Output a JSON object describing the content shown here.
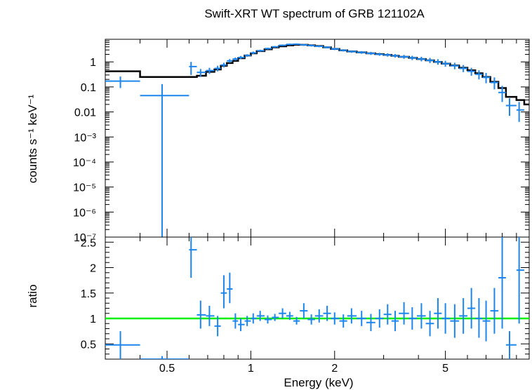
{
  "chart_data": [
    {
      "type": "scatter",
      "panel": "spectrum",
      "title": "Swift-XRT WT spectrum of GRB 121102A",
      "ylabel": "counts s⁻¹ keV⁻¹",
      "xlabel": "",
      "x_scale": "log",
      "y_scale": "log",
      "xlim": [
        0.3,
        10
      ],
      "ylim": [
        1e-07,
        8
      ],
      "y_tick_labels": [
        "1",
        "0.1",
        "0.01",
        "10⁻³",
        "10⁻⁴",
        "10⁻⁵",
        "10⁻⁶",
        "10⁻⁷"
      ],
      "y_tick_values": [
        1,
        0.1,
        0.01,
        0.001,
        0.0001,
        1e-05,
        1e-06,
        1e-07
      ],
      "colors": {
        "data": "#1c86ee",
        "model": "#000000"
      },
      "series": [
        {
          "kind": "data",
          "x": [
            0.34,
            0.48,
            0.61,
            0.66,
            0.71,
            0.76,
            0.8,
            0.84,
            0.88,
            0.92,
            0.97,
            1.02,
            1.08,
            1.15,
            1.22,
            1.3,
            1.38,
            1.46,
            1.55,
            1.65,
            1.76,
            1.88,
            2.0,
            2.15,
            2.3,
            2.5,
            2.7,
            2.9,
            3.1,
            3.3,
            3.55,
            3.8,
            4.1,
            4.4,
            4.7,
            5.0,
            5.4,
            5.8,
            6.2,
            6.6,
            7.0,
            7.5,
            8.0,
            8.5,
            9.2
          ],
          "xlo": [
            0.3,
            0.4,
            0.6,
            0.64,
            0.69,
            0.74,
            0.78,
            0.82,
            0.86,
            0.9,
            0.95,
            1.0,
            1.05,
            1.12,
            1.19,
            1.26,
            1.34,
            1.42,
            1.5,
            1.6,
            1.7,
            1.82,
            1.94,
            2.08,
            2.22,
            2.4,
            2.6,
            2.8,
            3.0,
            3.2,
            3.4,
            3.7,
            3.95,
            4.25,
            4.55,
            4.85,
            5.2,
            5.6,
            6.0,
            6.4,
            6.8,
            7.25,
            7.75,
            8.25,
            9.0
          ],
          "xhi": [
            0.4,
            0.6,
            0.64,
            0.69,
            0.74,
            0.78,
            0.82,
            0.86,
            0.9,
            0.95,
            1.0,
            1.05,
            1.12,
            1.19,
            1.26,
            1.34,
            1.42,
            1.5,
            1.6,
            1.7,
            1.82,
            1.94,
            2.08,
            2.22,
            2.4,
            2.6,
            2.8,
            3.0,
            3.2,
            3.4,
            3.7,
            3.95,
            4.25,
            4.55,
            4.85,
            5.2,
            5.6,
            6.0,
            6.4,
            6.8,
            7.25,
            7.75,
            8.25,
            9.0,
            9.6
          ],
          "y": [
            0.17,
            0.045,
            0.65,
            0.38,
            0.45,
            0.55,
            0.75,
            1.1,
            1.3,
            1.5,
            1.8,
            2.3,
            2.8,
            3.4,
            4.0,
            4.6,
            5.0,
            5.1,
            4.8,
            4.5,
            4.2,
            3.8,
            3.3,
            2.9,
            2.6,
            2.4,
            2.2,
            2.0,
            1.9,
            1.75,
            1.6,
            1.45,
            1.3,
            1.15,
            1.0,
            0.85,
            0.7,
            0.55,
            0.42,
            0.32,
            0.24,
            0.15,
            0.06,
            0.018,
            0.012
          ],
          "ylo": [
            0.09,
            1e-07,
            0.3,
            0.25,
            0.33,
            0.42,
            0.6,
            0.92,
            1.12,
            1.3,
            1.6,
            2.05,
            2.55,
            3.1,
            3.7,
            4.25,
            4.6,
            4.7,
            4.4,
            4.1,
            3.85,
            3.45,
            2.95,
            2.6,
            2.3,
            2.1,
            1.9,
            1.75,
            1.62,
            1.48,
            1.33,
            1.18,
            1.05,
            0.9,
            0.77,
            0.64,
            0.51,
            0.39,
            0.28,
            0.2,
            0.14,
            0.08,
            0.025,
            0.007,
            0.004
          ],
          "yhi": [
            0.26,
            0.13,
            1.0,
            0.52,
            0.58,
            0.7,
            0.92,
            1.3,
            1.5,
            1.72,
            2.02,
            2.58,
            3.07,
            3.7,
            4.3,
            4.95,
            5.4,
            5.5,
            5.2,
            4.9,
            4.55,
            4.15,
            3.65,
            3.2,
            2.9,
            2.7,
            2.5,
            2.3,
            2.2,
            2.05,
            1.9,
            1.75,
            1.6,
            1.45,
            1.28,
            1.1,
            0.92,
            0.75,
            0.58,
            0.46,
            0.36,
            0.24,
            0.11,
            0.035,
            0.025
          ]
        },
        {
          "kind": "model",
          "x": [
            0.3,
            0.4,
            0.6,
            0.64,
            0.69,
            0.74,
            0.78,
            0.82,
            0.86,
            0.9,
            0.95,
            1.0,
            1.05,
            1.12,
            1.19,
            1.26,
            1.34,
            1.42,
            1.5,
            1.6,
            1.7,
            1.82,
            1.94,
            2.08,
            2.22,
            2.4,
            2.6,
            2.8,
            3.0,
            3.2,
            3.4,
            3.7,
            3.95,
            4.25,
            4.55,
            4.85,
            5.2,
            5.6,
            6.0,
            6.4,
            6.8,
            7.25,
            7.75,
            8.25,
            9.0,
            9.6,
            10
          ],
          "y": [
            0.42,
            0.25,
            0.25,
            0.28,
            0.4,
            0.5,
            0.7,
            0.9,
            1.1,
            1.4,
            1.8,
            2.2,
            2.7,
            3.2,
            3.8,
            4.2,
            4.6,
            4.8,
            4.8,
            4.6,
            4.3,
            3.8,
            3.3,
            2.9,
            2.6,
            2.4,
            2.2,
            2.05,
            1.9,
            1.75,
            1.6,
            1.45,
            1.3,
            1.15,
            1.0,
            0.85,
            0.72,
            0.58,
            0.46,
            0.35,
            0.25,
            0.16,
            0.09,
            0.04,
            0.03,
            0.02,
            0.015
          ]
        }
      ]
    },
    {
      "type": "scatter",
      "panel": "ratio",
      "title": "",
      "ylabel": "ratio",
      "xlabel": "Energy (keV)",
      "x_scale": "log",
      "y_scale": "linear",
      "xlim": [
        0.3,
        10
      ],
      "ylim": [
        0.2,
        2.6
      ],
      "x_tick_labels": [
        "0.5",
        "1",
        "2",
        "5"
      ],
      "x_tick_values": [
        0.5,
        1,
        2,
        5
      ],
      "y_tick_labels": [
        "0.5",
        "1",
        "1.5",
        "2",
        "2.5"
      ],
      "y_tick_values": [
        0.5,
        1,
        1.5,
        2,
        2.5
      ],
      "reference_line": 1,
      "colors": {
        "data": "#1c86ee",
        "reference": "#00ee00"
      },
      "series": [
        {
          "kind": "data",
          "x": [
            0.34,
            0.48,
            0.61,
            0.66,
            0.71,
            0.76,
            0.8,
            0.84,
            0.88,
            0.92,
            0.97,
            1.02,
            1.08,
            1.15,
            1.22,
            1.3,
            1.38,
            1.46,
            1.55,
            1.65,
            1.76,
            1.88,
            2.0,
            2.15,
            2.3,
            2.5,
            2.7,
            2.9,
            3.1,
            3.3,
            3.55,
            3.8,
            4.1,
            4.4,
            4.7,
            5.0,
            5.4,
            5.8,
            6.2,
            6.6,
            7.0,
            7.5,
            8.0,
            8.5,
            9.2
          ],
          "xlo": [
            0.3,
            0.4,
            0.6,
            0.64,
            0.69,
            0.74,
            0.78,
            0.82,
            0.86,
            0.9,
            0.95,
            1.0,
            1.05,
            1.12,
            1.19,
            1.26,
            1.34,
            1.42,
            1.5,
            1.6,
            1.7,
            1.82,
            1.94,
            2.08,
            2.22,
            2.4,
            2.6,
            2.8,
            3.0,
            3.2,
            3.4,
            3.7,
            3.95,
            4.25,
            4.55,
            4.85,
            5.2,
            5.6,
            6.0,
            6.4,
            6.8,
            7.25,
            7.75,
            8.25,
            9.0
          ],
          "xhi": [
            0.4,
            0.6,
            0.64,
            0.69,
            0.74,
            0.78,
            0.82,
            0.86,
            0.9,
            0.95,
            1.0,
            1.05,
            1.12,
            1.19,
            1.26,
            1.34,
            1.42,
            1.5,
            1.6,
            1.7,
            1.82,
            1.94,
            2.08,
            2.22,
            2.4,
            2.6,
            2.8,
            3.0,
            3.2,
            3.4,
            3.7,
            3.95,
            4.25,
            4.55,
            4.85,
            5.2,
            5.6,
            6.0,
            6.4,
            6.8,
            7.25,
            7.75,
            8.25,
            9.0,
            9.6
          ],
          "y": [
            0.48,
            0.2,
            2.35,
            1.07,
            1.05,
            0.85,
            1.5,
            1.58,
            0.95,
            0.88,
            0.95,
            1.0,
            1.05,
            0.98,
            1.02,
            1.1,
            1.05,
            0.95,
            1.15,
            0.98,
            1.05,
            1.1,
            1.0,
            0.95,
            1.05,
            1.0,
            0.92,
            1.0,
            1.08,
            0.95,
            1.1,
            1.0,
            1.05,
            0.9,
            1.1,
            1.0,
            0.95,
            1.05,
            1.2,
            1.0,
            0.95,
            1.15,
            1.8,
            0.48,
            1.95
          ],
          "ylo": [
            0.2,
            0.2,
            1.8,
            0.8,
            0.85,
            0.65,
            1.2,
            1.3,
            0.8,
            0.75,
            0.85,
            0.9,
            0.95,
            0.9,
            0.95,
            1.0,
            0.97,
            0.88,
            1.0,
            0.88,
            0.92,
            0.95,
            0.88,
            0.82,
            0.9,
            0.85,
            0.75,
            0.82,
            0.88,
            0.75,
            0.88,
            0.78,
            0.8,
            0.65,
            0.8,
            0.7,
            0.62,
            0.7,
            0.8,
            0.62,
            0.55,
            0.7,
            0.8,
            0.2,
            0.9
          ],
          "yhi": [
            0.75,
            0.26,
            2.6,
            1.35,
            1.25,
            1.05,
            1.85,
            1.9,
            1.1,
            1.0,
            1.05,
            1.1,
            1.15,
            1.06,
            1.09,
            1.2,
            1.13,
            1.03,
            1.3,
            1.08,
            1.18,
            1.25,
            1.12,
            1.08,
            1.2,
            1.15,
            1.09,
            1.18,
            1.28,
            1.15,
            1.32,
            1.22,
            1.3,
            1.15,
            1.4,
            1.3,
            1.28,
            1.4,
            1.6,
            1.4,
            1.35,
            1.6,
            2.6,
            0.75,
            2.6
          ]
        }
      ]
    }
  ]
}
